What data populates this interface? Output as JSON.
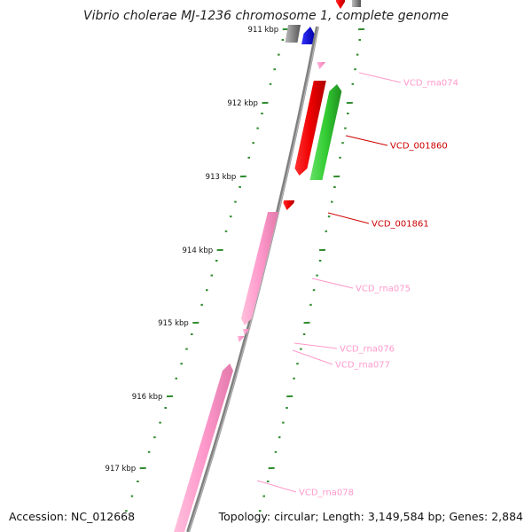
{
  "title": "Vibrio cholerae MJ-1236 chromosome 1, complete genome",
  "ticks": [
    "911 kbp",
    "912 kbp",
    "913 kbp",
    "914 kbp",
    "915 kbp",
    "916 kbp",
    "917 kbp"
  ],
  "features": [
    {
      "label": "VCD_rna074",
      "color": "#ff99cc",
      "track": "outer"
    },
    {
      "label": "VCD_001860",
      "color": "#cc0000",
      "track": "outer"
    },
    {
      "label": "VCD_001861",
      "color": "#cc0000",
      "track": "outer"
    },
    {
      "label": "VCD_rna075",
      "color": "#ff99cc",
      "track": "outer"
    },
    {
      "label": "VCD_rna076",
      "color": "#ff99cc",
      "track": "outer"
    },
    {
      "label": "VCD_rna077",
      "color": "#ff99cc",
      "track": "outer"
    },
    {
      "label": "VCD_rna078",
      "color": "#ff99cc",
      "track": "outer"
    }
  ],
  "colors": {
    "backbone": "#808080",
    "tick": "#2e8b2e",
    "rna": "#ff99cc",
    "forward_cds": "#33cc33",
    "reverse_cds": "#ee0000",
    "blue_gene": "#0000dd",
    "gray_gene": "#888888"
  },
  "footer": {
    "accession": "Accession: NC_012668",
    "summary": "Topology: circular; Length: 3,149,584 bp; Genes: 2,884"
  }
}
